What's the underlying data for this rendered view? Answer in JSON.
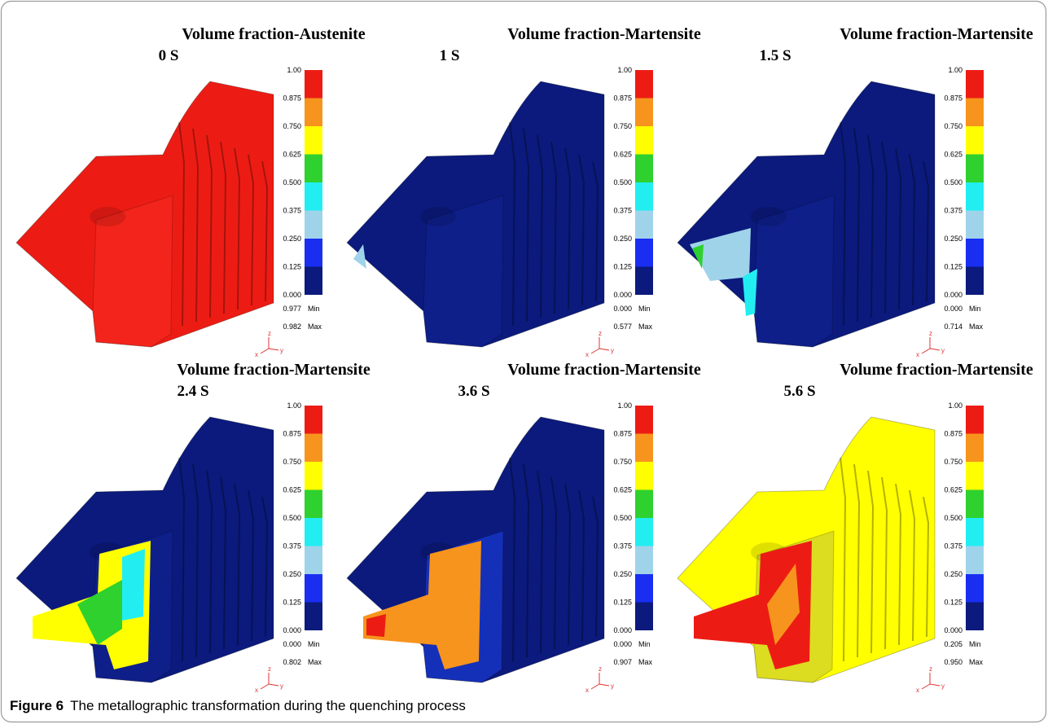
{
  "panels": [
    {
      "title": "Volume fraction-Austenite",
      "time": "0 S",
      "min": "0.977",
      "max": "0.982"
    },
    {
      "title": "Volume fraction-Martensite",
      "time": "1 S",
      "min": "0.000",
      "max": "0.577"
    },
    {
      "title": "Volume fraction-Martensite",
      "time": "1.5 S",
      "min": "0.000",
      "max": "0.714"
    },
    {
      "title": "Volume fraction-Martensite",
      "time": "2.4 S",
      "min": "0.000",
      "max": "0.802"
    },
    {
      "title": "Volume fraction-Martensite",
      "time": "3.6 S",
      "min": "0.000",
      "max": "0.907"
    },
    {
      "title": "Volume fraction-Martensite",
      "time": "5.6 S",
      "min": "0.205",
      "max": "0.950"
    }
  ],
  "color_scale": {
    "labels": [
      "1.00",
      "0.875",
      "0.750",
      "0.625",
      "0.500",
      "0.375",
      "0.250",
      "0.125",
      "0.000"
    ],
    "colors": [
      "#ec1c14",
      "#f7941d",
      "#ffff00",
      "#2ed12e",
      "#22eef2",
      "#9fd3ea",
      "#1a2ef2",
      "#0b1a7c"
    ],
    "min_label": "Min",
    "max_label": "Max"
  },
  "axis_triad": [
    "z",
    "x",
    "y"
  ],
  "caption": {
    "label": "Figure 6",
    "text": "The metallographic transformation during the quenching process"
  }
}
